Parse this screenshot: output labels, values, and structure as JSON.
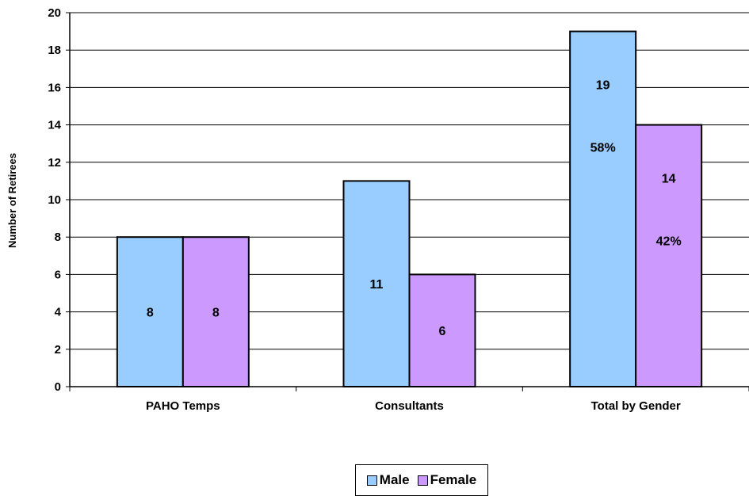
{
  "chart_data": {
    "type": "bar",
    "categories": [
      "PAHO Temps",
      "Consultants",
      "Total by Gender"
    ],
    "series": [
      {
        "name": "Male",
        "values": [
          8,
          11,
          19
        ],
        "color": "#99ccff",
        "percent_labels": [
          null,
          null,
          "58%"
        ]
      },
      {
        "name": "Female",
        "values": [
          8,
          6,
          14
        ],
        "color": "#cc99ff",
        "percent_labels": [
          null,
          null,
          "42%"
        ]
      }
    ],
    "ylabel": "Number of Retirees",
    "xlabel": "",
    "title": "",
    "ylim": [
      0,
      20
    ],
    "yticks": [
      0,
      2,
      4,
      6,
      8,
      10,
      12,
      14,
      16,
      18,
      20
    ],
    "grid": true,
    "legend_position": "bottom-center"
  }
}
